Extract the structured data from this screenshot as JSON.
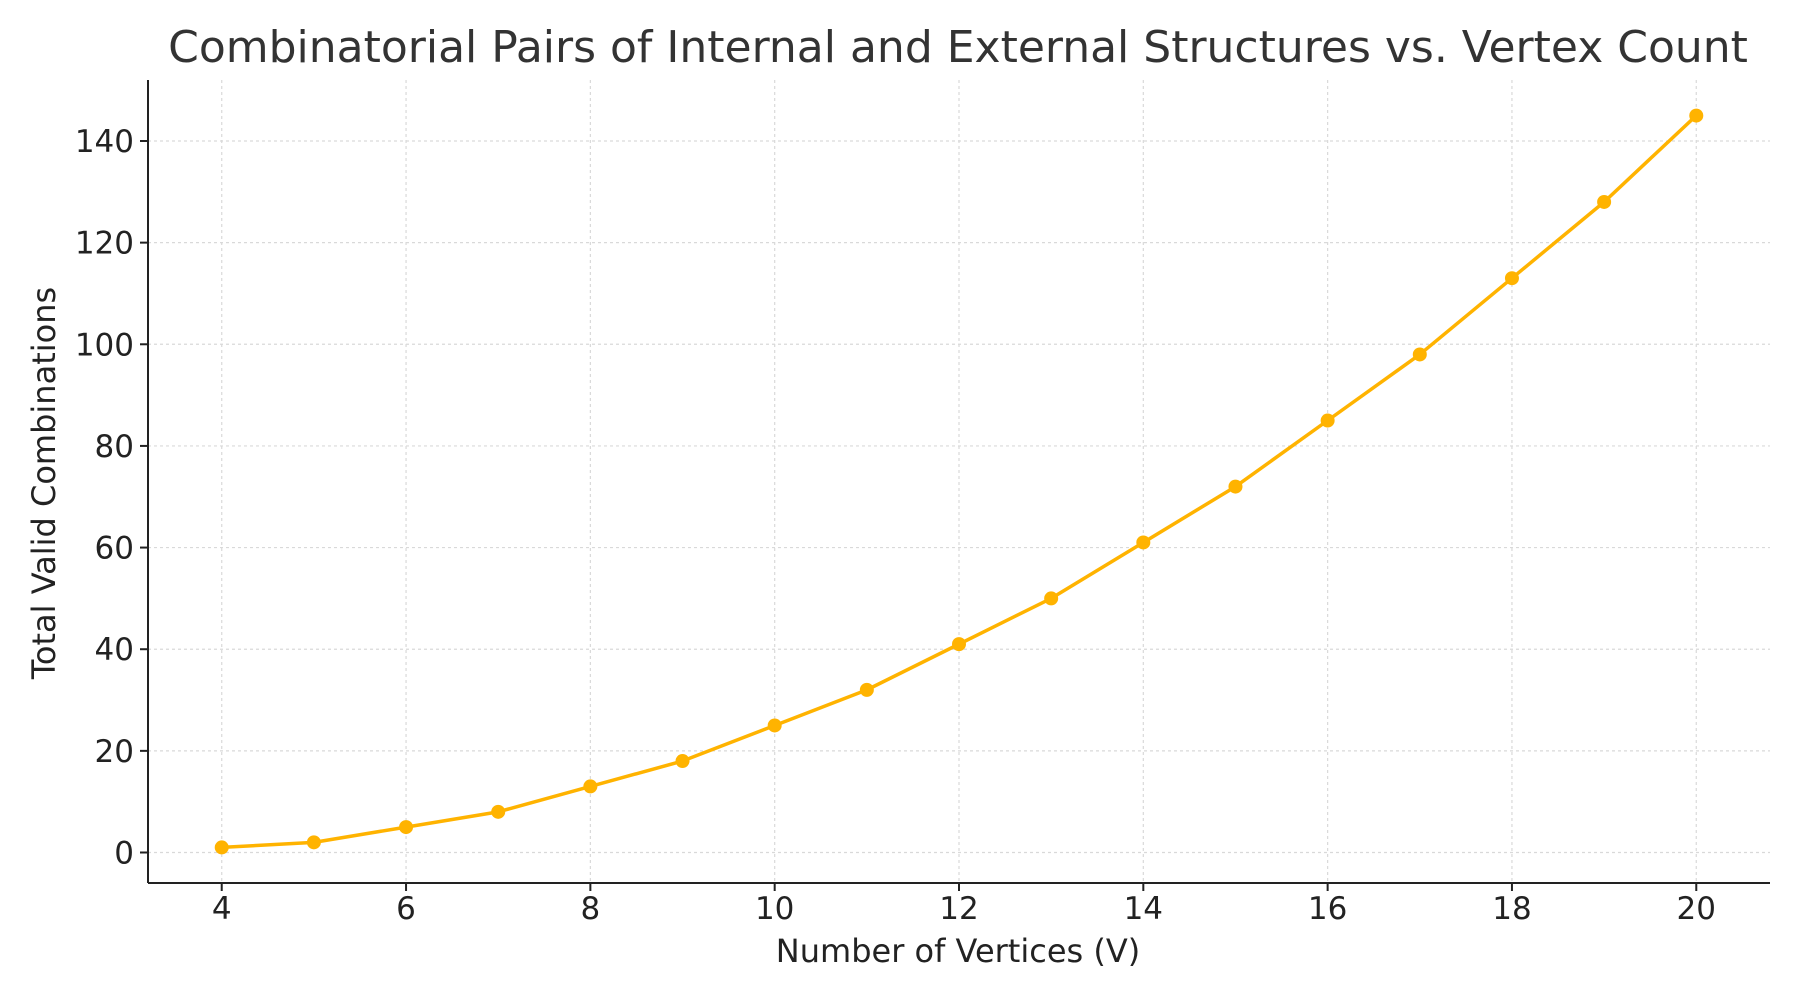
{
  "chart_data": {
    "type": "line",
    "title": "Combinatorial Pairs of Internal and External Structures vs. Vertex Count",
    "xlabel": "Number of Vertices (V)",
    "ylabel": "Total Valid Combinations",
    "x": [
      4,
      5,
      6,
      7,
      8,
      9,
      10,
      11,
      12,
      13,
      14,
      15,
      16,
      17,
      18,
      19,
      20
    ],
    "series": [
      {
        "values": [
          1,
          2,
          5,
          8,
          13,
          18,
          25,
          32,
          41,
          50,
          61,
          72,
          85,
          98,
          113,
          128,
          145
        ],
        "color": "#FFB300",
        "marker": "circle"
      }
    ],
    "xlim": [
      3.2,
      20.8
    ],
    "ylim": [
      -6,
      152
    ],
    "xticks": [
      4,
      6,
      8,
      10,
      12,
      14,
      16,
      18,
      20
    ],
    "yticks": [
      0,
      20,
      40,
      60,
      80,
      100,
      120,
      140
    ],
    "grid": true,
    "grid_style": "dashed"
  }
}
